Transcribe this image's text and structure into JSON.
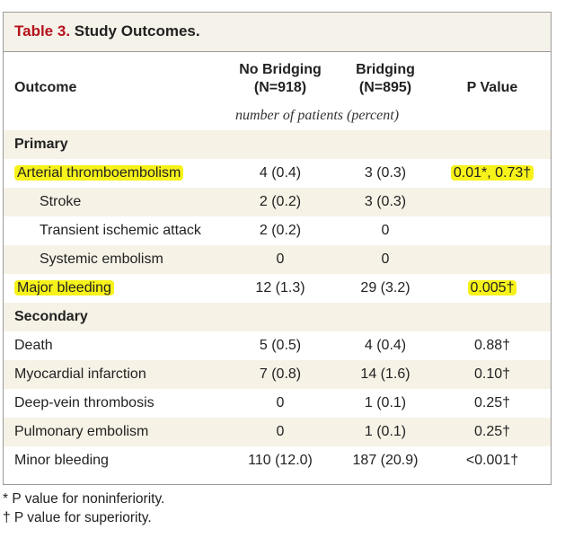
{
  "table": {
    "title_number": "Table 3.",
    "title_text": "Study Outcomes.",
    "columns": {
      "outcome": "Outcome",
      "no_bridging_line1": "No Bridging",
      "no_bridging_line2": "(N=918)",
      "bridging_line1": "Bridging",
      "bridging_line2": "(N=895)",
      "p_value": "P Value"
    },
    "units": "number of patients (percent)",
    "rows": [
      {
        "label": "Primary",
        "no_bridging": "",
        "bridging": "",
        "p_value": ""
      },
      {
        "label": "Arterial thromboembolism",
        "no_bridging": "4 (0.4)",
        "bridging": "3 (0.3)",
        "p_value": "0.01*, 0.73†"
      },
      {
        "label": "Stroke",
        "no_bridging": "2 (0.2)",
        "bridging": "3 (0.3)",
        "p_value": ""
      },
      {
        "label": "Transient ischemic attack",
        "no_bridging": "2 (0.2)",
        "bridging": "0",
        "p_value": ""
      },
      {
        "label": "Systemic embolism",
        "no_bridging": "0",
        "bridging": "0",
        "p_value": ""
      },
      {
        "label": "Major bleeding",
        "no_bridging": "12 (1.3)",
        "bridging": "29 (3.2)",
        "p_value": "0.005†"
      },
      {
        "label": "Secondary",
        "no_bridging": "",
        "bridging": "",
        "p_value": ""
      },
      {
        "label": "Death",
        "no_bridging": "5 (0.5)",
        "bridging": "4 (0.4)",
        "p_value": "0.88†"
      },
      {
        "label": "Myocardial infarction",
        "no_bridging": "7 (0.8)",
        "bridging": "14 (1.6)",
        "p_value": "0.10†"
      },
      {
        "label": "Deep-vein thrombosis",
        "no_bridging": "0",
        "bridging": "1 (0.1)",
        "p_value": "0.25†"
      },
      {
        "label": "Pulmonary embolism",
        "no_bridging": "0",
        "bridging": "1 (0.1)",
        "p_value": "0.25†"
      },
      {
        "label": "Minor bleeding",
        "no_bridging": "110 (12.0)",
        "bridging": "187 (20.9)",
        "p_value": "<0.001†"
      }
    ]
  },
  "footnotes": {
    "star": "* P value for noninferiority.",
    "dagger": "† P value for superiority."
  },
  "colors": {
    "title_number": "#b5121b",
    "shade": "#f6f2e6",
    "highlight": "#f6f21a"
  }
}
